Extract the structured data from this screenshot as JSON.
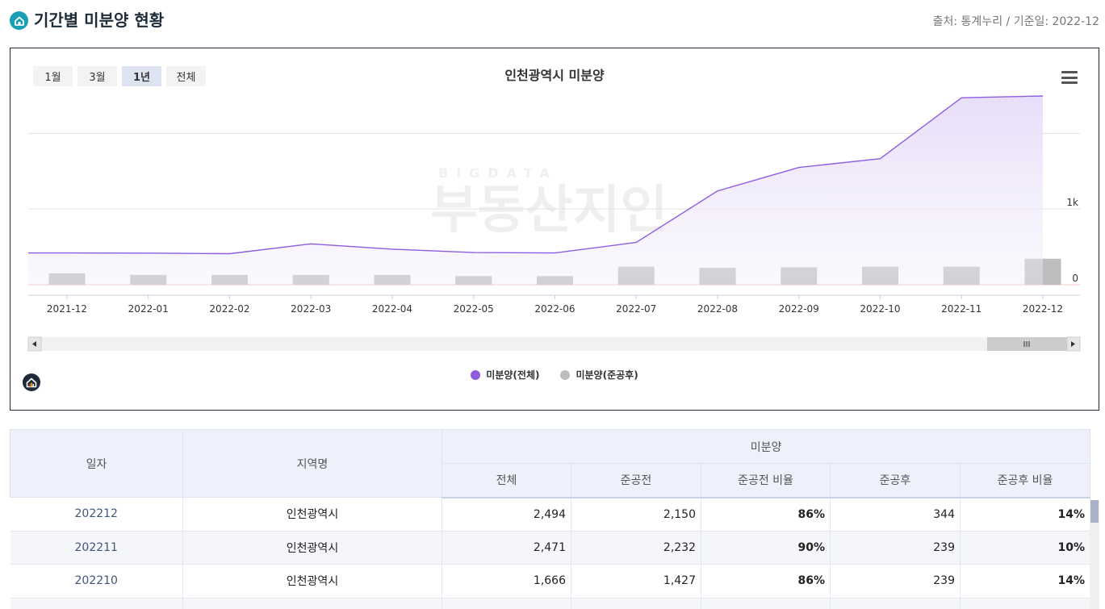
{
  "header": {
    "title": "기간별 미분양 현황",
    "source": "출처: 통계누리 / 기준일: 2022-12"
  },
  "range_buttons": [
    "1월",
    "3월",
    "1년",
    "전체"
  ],
  "active_range": "1년",
  "watermark": {
    "sub": "BIGDATA",
    "main": "부동산지인"
  },
  "chart_data": {
    "type": "line+bar",
    "title": "인천광역시 미분양",
    "categories": [
      "2021-12",
      "2022-01",
      "2022-02",
      "2022-03",
      "2022-04",
      "2022-05",
      "2022-06",
      "2022-07",
      "2022-08",
      "2022-09",
      "2022-10",
      "2022-11",
      "2022-12"
    ],
    "series": [
      {
        "name": "미분양(전체)",
        "type": "area-line",
        "color": "#8f5ce0",
        "values": [
          420,
          418,
          410,
          540,
          470,
          425,
          420,
          560,
          1240,
          1550,
          1666,
          2471,
          2494
        ]
      },
      {
        "name": "미분양(준공후)",
        "type": "bar",
        "color": "#bdbdbd",
        "values": [
          150,
          130,
          130,
          130,
          130,
          115,
          115,
          239,
          225,
          230,
          239,
          239,
          344
        ]
      }
    ],
    "y_ticks": [
      {
        "value": 0,
        "label": "0"
      },
      {
        "value": 1000,
        "label": "1k"
      },
      {
        "value": 2000,
        "label": ""
      }
    ],
    "ylim": [
      0,
      2750
    ],
    "legend_position": "bottom",
    "grid": true
  },
  "table": {
    "group_header": "미분양",
    "headers": [
      "일자",
      "지역명",
      "전체",
      "준공전",
      "준공전 비율",
      "준공후",
      "준공후 비율"
    ],
    "rows": [
      [
        "202212",
        "인천광역시",
        "2,494",
        "2,150",
        "86%",
        "344",
        "14%"
      ],
      [
        "202211",
        "인천광역시",
        "2,471",
        "2,232",
        "90%",
        "239",
        "10%"
      ],
      [
        "202210",
        "인천광역시",
        "1,666",
        "1,427",
        "86%",
        "239",
        "14%"
      ],
      [
        "",
        "",
        "",
        "",
        "",
        "",
        ""
      ]
    ]
  }
}
